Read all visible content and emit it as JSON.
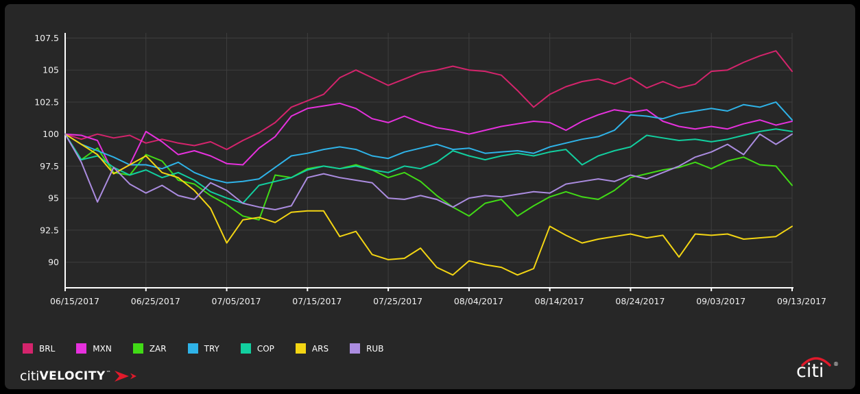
{
  "colors": {
    "background": "#000000",
    "panel": "#272727",
    "grid": "#3e3e3e",
    "axis": "#ffffff",
    "tick_text": "#f0f0f0",
    "accent_red": "#e01a2b",
    "legend_text": "#ffffff"
  },
  "chart_data": {
    "type": "line",
    "title": "",
    "xlabel": "",
    "ylabel": "",
    "grid": true,
    "legend_position": "bottom-left",
    "x_tick_labels": [
      "06/15/2017",
      "06/25/2017",
      "07/05/2017",
      "07/15/2017",
      "07/25/2017",
      "08/04/2017",
      "08/14/2017",
      "08/24/2017",
      "09/03/2017",
      "09/13/2017"
    ],
    "x_tick_days": [
      0,
      10,
      20,
      30,
      40,
      50,
      60,
      70,
      80,
      90
    ],
    "y_ticks": [
      90,
      92.5,
      95,
      97.5,
      100,
      102.5,
      105,
      107.5
    ],
    "y_range": [
      88,
      107.9
    ],
    "x_days": [
      0,
      2,
      4,
      6,
      8,
      10,
      12,
      14,
      16,
      18,
      20,
      22,
      24,
      26,
      28,
      30,
      32,
      34,
      36,
      38,
      40,
      42,
      44,
      46,
      48,
      50,
      52,
      54,
      56,
      58,
      60,
      62,
      64,
      66,
      68,
      70,
      72,
      74,
      76,
      78,
      80,
      82,
      84,
      86,
      88,
      90
    ],
    "series": [
      {
        "name": "BRL",
        "color": "#d4246c",
        "values": [
          100,
          99.6,
          100.0,
          99.7,
          99.9,
          99.3,
          99.6,
          99.3,
          99.1,
          99.4,
          98.8,
          99.5,
          100.1,
          100.9,
          102.1,
          102.6,
          103.1,
          104.4,
          105.0,
          104.4,
          103.8,
          104.3,
          104.8,
          105.0,
          105.3,
          105.0,
          104.9,
          104.6,
          103.4,
          102.1,
          103.1,
          103.7,
          104.1,
          104.3,
          103.9,
          104.4,
          103.6,
          104.1,
          103.6,
          103.9,
          104.9,
          105.0,
          105.6,
          106.1,
          106.5,
          104.9
        ]
      },
      {
        "name": "MXN",
        "color": "#e631dd",
        "values": [
          100,
          99.9,
          99.5,
          96.9,
          97.6,
          100.2,
          99.4,
          98.4,
          98.7,
          98.3,
          97.7,
          97.6,
          98.9,
          99.8,
          101.4,
          102.0,
          102.2,
          102.4,
          102.0,
          101.2,
          100.9,
          101.4,
          100.9,
          100.5,
          100.3,
          100.0,
          100.3,
          100.6,
          100.8,
          101.0,
          100.9,
          100.3,
          101.0,
          101.5,
          101.9,
          101.7,
          101.9,
          101.0,
          100.6,
          100.4,
          100.6,
          100.4,
          100.8,
          101.1,
          100.7,
          101.0
        ]
      },
      {
        "name": "ZAR",
        "color": "#41da16",
        "values": [
          100,
          98.0,
          98.9,
          97.0,
          96.8,
          98.4,
          97.9,
          96.4,
          96.1,
          95.2,
          94.5,
          93.6,
          93.3,
          96.8,
          96.6,
          97.3,
          97.5,
          97.3,
          97.6,
          97.2,
          96.6,
          97.0,
          96.3,
          95.2,
          94.3,
          93.6,
          94.6,
          94.9,
          93.6,
          94.4,
          95.1,
          95.5,
          95.1,
          94.9,
          95.6,
          96.6,
          96.9,
          97.2,
          97.4,
          97.8,
          97.3,
          97.9,
          98.2,
          97.6,
          97.5,
          96.0
        ]
      },
      {
        "name": "TRY",
        "color": "#2fb3e8",
        "values": [
          100,
          99.2,
          98.7,
          98.2,
          97.6,
          97.6,
          97.3,
          97.8,
          97.0,
          96.5,
          96.2,
          96.3,
          96.5,
          97.4,
          98.3,
          98.5,
          98.8,
          99.0,
          98.8,
          98.3,
          98.1,
          98.6,
          98.9,
          99.2,
          98.8,
          98.9,
          98.5,
          98.6,
          98.7,
          98.5,
          99.0,
          99.3,
          99.6,
          99.8,
          100.3,
          101.5,
          101.4,
          101.2,
          101.6,
          101.8,
          102.0,
          101.8,
          102.3,
          102.1,
          102.5,
          101.1
        ]
      },
      {
        "name": "COP",
        "color": "#12cf9f",
        "values": [
          100,
          98.0,
          98.3,
          97.4,
          96.8,
          97.2,
          96.6,
          97.0,
          96.4,
          95.5,
          95.0,
          94.6,
          96.0,
          96.3,
          96.6,
          97.2,
          97.5,
          97.3,
          97.5,
          97.2,
          97.0,
          97.5,
          97.3,
          97.8,
          98.7,
          98.3,
          98.0,
          98.3,
          98.5,
          98.3,
          98.6,
          98.8,
          97.6,
          98.3,
          98.7,
          99.0,
          99.9,
          99.7,
          99.5,
          99.6,
          99.4,
          99.6,
          99.9,
          100.2,
          100.4,
          100.2
        ]
      },
      {
        "name": "ARS",
        "color": "#f3d513",
        "values": [
          100,
          99.2,
          98.4,
          96.9,
          97.6,
          98.3,
          97.0,
          96.6,
          95.6,
          94.2,
          91.5,
          93.3,
          93.5,
          93.1,
          93.9,
          94.0,
          94.0,
          92.0,
          92.4,
          90.6,
          90.2,
          90.3,
          91.1,
          89.6,
          89.0,
          90.1,
          89.8,
          89.6,
          89.0,
          89.5,
          92.8,
          92.1,
          91.5,
          91.8,
          92.0,
          92.2,
          91.9,
          92.1,
          90.4,
          92.2,
          92.1,
          92.2,
          91.8,
          91.9,
          92.0,
          92.8
        ]
      },
      {
        "name": "RUB",
        "color": "#ab8ce0",
        "values": [
          100,
          97.8,
          94.7,
          97.4,
          96.1,
          95.4,
          96.0,
          95.2,
          94.9,
          96.2,
          95.6,
          94.6,
          94.3,
          94.1,
          94.4,
          96.6,
          96.9,
          96.6,
          96.4,
          96.2,
          95.0,
          94.9,
          95.2,
          94.9,
          94.3,
          95.0,
          95.2,
          95.1,
          95.3,
          95.5,
          95.4,
          96.1,
          96.3,
          96.5,
          96.3,
          96.8,
          96.5,
          97.0,
          97.5,
          98.2,
          98.6,
          99.2,
          98.4,
          100.0,
          99.2,
          100.0
        ]
      }
    ]
  },
  "branding": {
    "citi": "citi",
    "velocity": "VELOCITY",
    "tm": "™",
    "citi_right": "citi",
    "registered": "®"
  }
}
